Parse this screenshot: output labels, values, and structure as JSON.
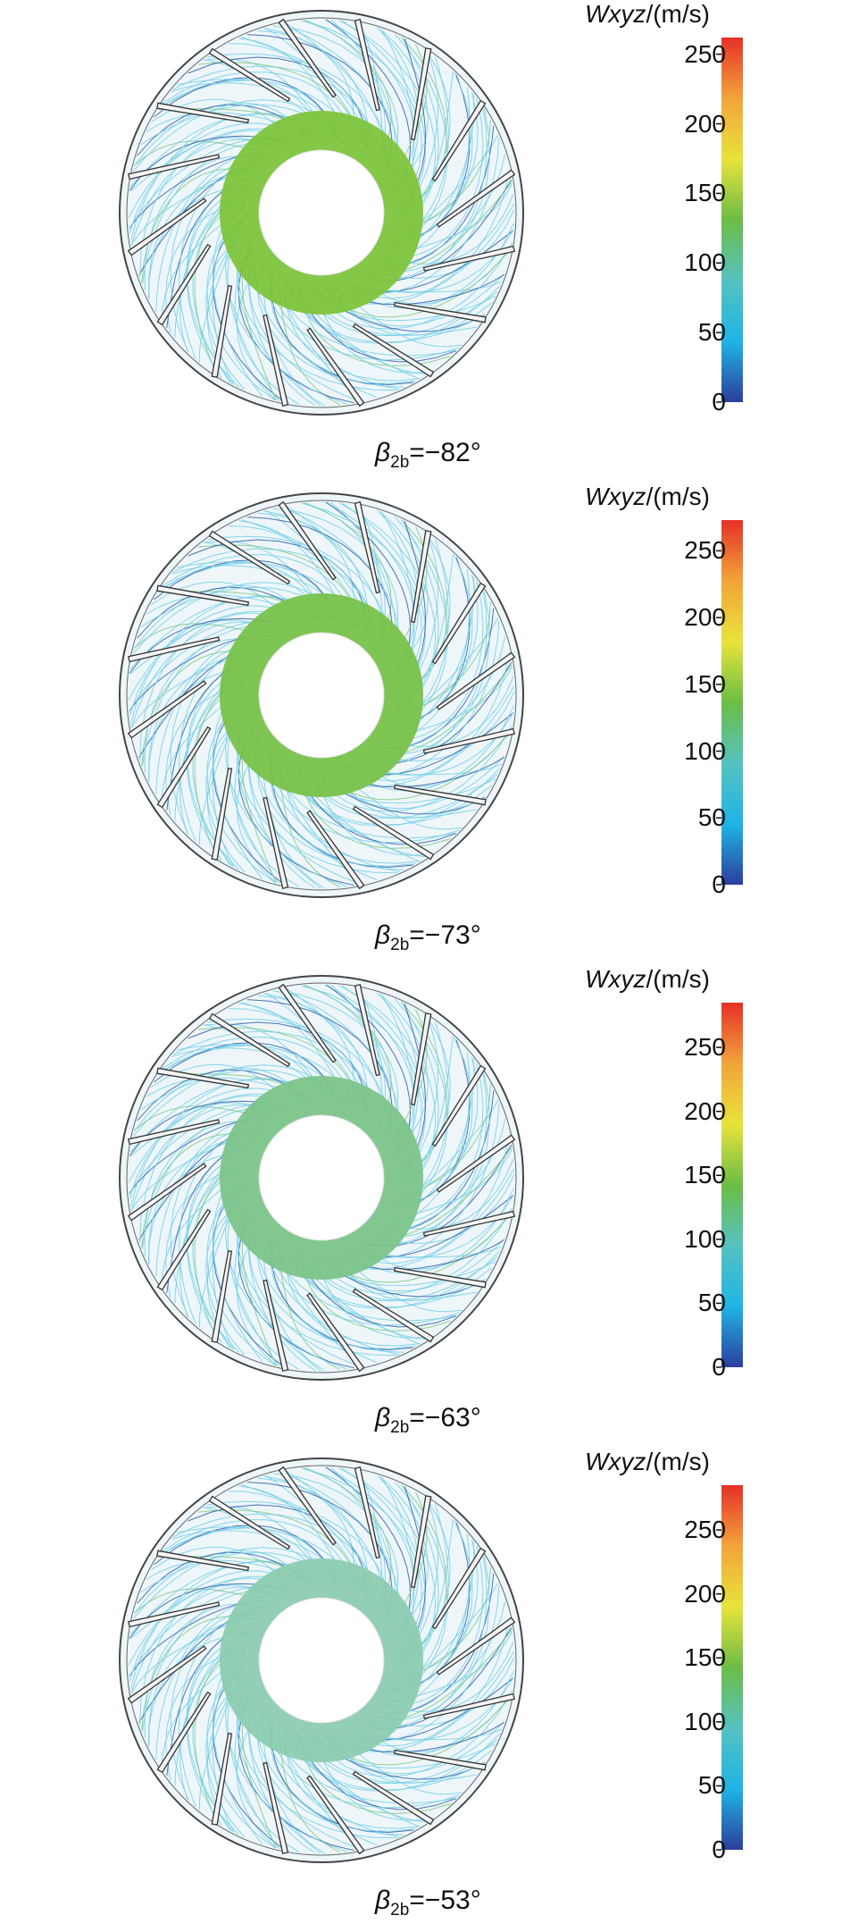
{
  "panels": [
    {
      "caption_symbol": "β",
      "caption_sub": "2b",
      "caption_value": "=−82°",
      "legend_var": "Wxyz",
      "legend_unit": "/(m/s)",
      "ticks": [
        "250",
        "200",
        "150",
        "100",
        "50",
        "0"
      ],
      "tick_values": [
        250,
        200,
        150,
        100,
        50,
        0
      ],
      "max": 262
    },
    {
      "caption_symbol": "β",
      "caption_sub": "2b",
      "caption_value": "=−73°",
      "legend_var": "Wxyz",
      "legend_unit": "/(m/s)",
      "ticks": [
        "250",
        "200",
        "150",
        "100",
        "50",
        "0"
      ],
      "tick_values": [
        250,
        200,
        150,
        100,
        50,
        0
      ],
      "max": 273
    },
    {
      "caption_symbol": "β",
      "caption_sub": "2b",
      "caption_value": "=−63°",
      "legend_var": "Wxyz",
      "legend_unit": "/(m/s)",
      "ticks": [
        "250",
        "200",
        "150",
        "100",
        "50",
        "0"
      ],
      "tick_values": [
        250,
        200,
        150,
        100,
        50,
        0
      ],
      "max": 285
    },
    {
      "caption_symbol": "β",
      "caption_sub": "2b",
      "caption_value": "=−53°",
      "legend_var": "Wxyz",
      "legend_unit": "/(m/s)",
      "ticks": [
        "250",
        "200",
        "150",
        "100",
        "50",
        "0"
      ],
      "tick_values": [
        250,
        200,
        150,
        100,
        50,
        0
      ],
      "max": 285
    }
  ],
  "colors": {
    "colormap": [
      "#2c3e9e",
      "#1fb4e6",
      "#55c2c0",
      "#6cbd45",
      "#e8e33a",
      "#f2a43a",
      "#e63027"
    ],
    "ring": [
      "#7ec43c",
      "#78c24a",
      "#7cc48a",
      "#8cccb0"
    ],
    "streamline_light": "#74cfe6",
    "streamline_dark": "#2f5aa8",
    "streamline_green": "#7ec97a",
    "blade": "#333333"
  }
}
